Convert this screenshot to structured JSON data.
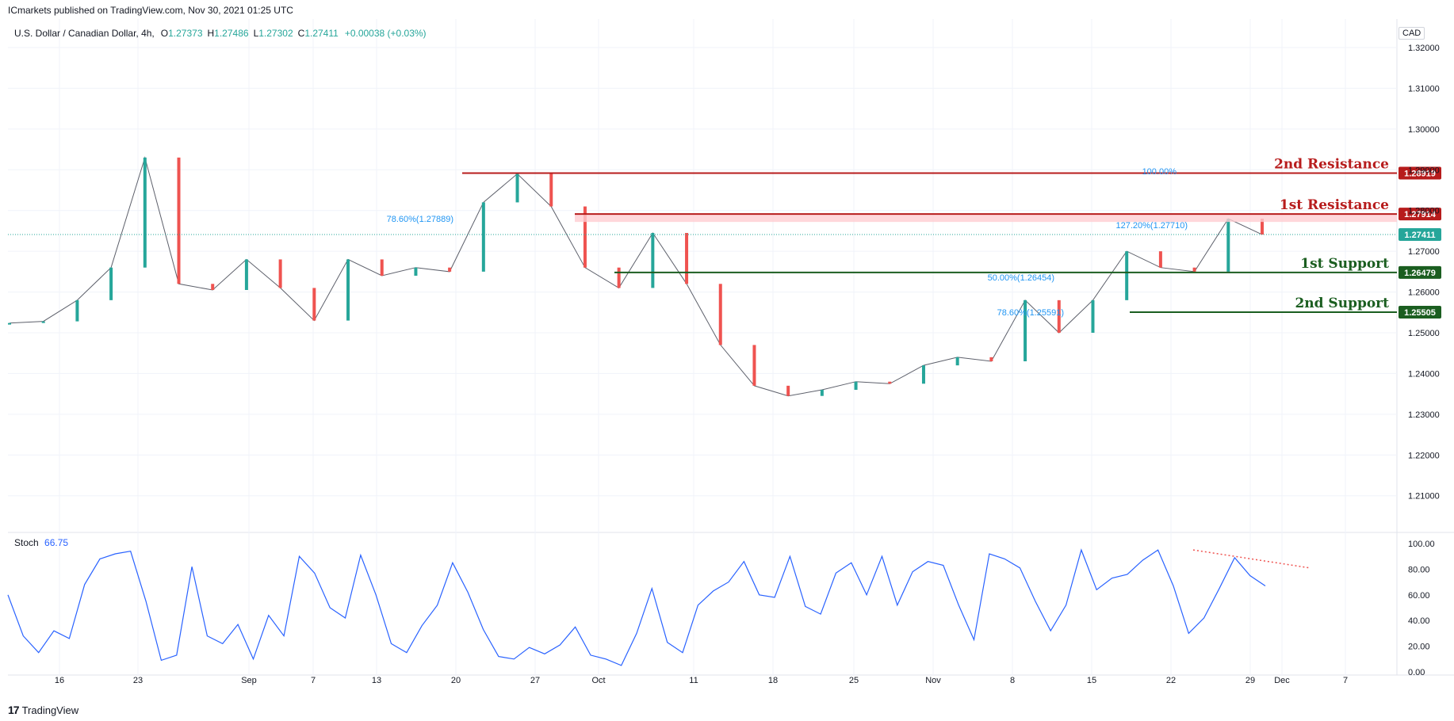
{
  "header": {
    "published": "ICmarkets published on TradingView.com, Nov 30, 2021 01:25 UTC",
    "symbol": "U.S. Dollar / Canadian Dollar, 4h,",
    "ohlc": [
      {
        "k": "O",
        "v": "1.27373"
      },
      {
        "k": "H",
        "v": "1.27486"
      },
      {
        "k": "L",
        "v": "1.27302"
      },
      {
        "k": "C",
        "v": "1.27411"
      }
    ],
    "change": "+0.00038 (+0.03%)",
    "currency": "CAD"
  },
  "stoch": {
    "label": "Stoch",
    "value": "66.75"
  },
  "footer": {
    "brand": "TradingView"
  },
  "colors": {
    "up": "#26a69a",
    "down": "#ef5350",
    "grid": "#f0f3fa",
    "resistance": "#b71c1c",
    "support": "#1b5e20",
    "stoch": "#2962ff",
    "text": "#131722"
  },
  "chart_data": {
    "type": "line",
    "title": "U.S. Dollar / Canadian Dollar, 4h",
    "price_ylim": [
      1.201,
      1.327
    ],
    "price_ticks": [
      "1.32000",
      "1.31000",
      "1.30000",
      "1.29000",
      "1.28000",
      "1.27000",
      "1.26000",
      "1.25000",
      "1.24000",
      "1.23000",
      "1.22000",
      "1.21000"
    ],
    "x_ticks": [
      "16",
      "23",
      "Sep",
      "7",
      "13",
      "20",
      "27",
      "Oct",
      "11",
      "18",
      "25",
      "Nov",
      "8",
      "15",
      "22",
      "29",
      "Dec",
      "7"
    ],
    "series": [
      {
        "x": [
          "Aug 10",
          "Aug 13",
          "Aug 16",
          "Aug 19",
          "Aug 20",
          "Aug 23",
          "Aug 25",
          "Aug 27",
          "Aug 31",
          "Sep 3",
          "Sep 6",
          "Sep 9",
          "Sep 13",
          "Sep 16",
          "Sep 20",
          "Sep 21",
          "Sep 24",
          "Sep 27",
          "Sep 29",
          "Oct 1",
          "Oct 6",
          "Oct 12",
          "Oct 18",
          "Oct 21",
          "Oct 25",
          "Oct 28",
          "Nov 1",
          "Nov 5",
          "Nov 9",
          "Nov 11",
          "Nov 15",
          "Nov 17",
          "Nov 19",
          "Nov 23",
          "Nov 25",
          "Nov 26",
          "Nov 29",
          "Nov 30"
        ],
        "values": [
          1.2524,
          1.2528,
          1.258,
          1.266,
          1.293,
          1.262,
          1.2605,
          1.268,
          1.261,
          1.253,
          1.268,
          1.264,
          1.266,
          1.265,
          1.282,
          1.289,
          1.281,
          1.266,
          1.261,
          1.2745,
          1.262,
          1.247,
          1.237,
          1.2345,
          1.236,
          1.238,
          1.2375,
          1.242,
          1.244,
          1.243,
          1.258,
          1.25,
          1.258,
          1.27,
          1.266,
          1.265,
          1.278,
          1.2741
        ]
      }
    ],
    "levels": [
      {
        "label": "2nd Resistance",
        "value": "1.28919",
        "kind": "resistance"
      },
      {
        "label": "1st Resistance",
        "value": "1.27914",
        "kind": "resistance"
      },
      {
        "label": "1st Support",
        "value": "1.26479",
        "kind": "support"
      },
      {
        "label": "2nd Support",
        "value": "1.25505",
        "kind": "support"
      }
    ],
    "last_price": "1.27411",
    "fib_labels": [
      "100.00%",
      "78.60%(1.27889)",
      "127.20%(1.27710)",
      "50.00%(1.26454)",
      "78.60%(1.25591)"
    ],
    "stochastic": {
      "ylim": [
        0,
        100
      ],
      "ticks": [
        "100.00",
        "80.00",
        "60.00",
        "40.00",
        "20.00",
        "0.00"
      ],
      "values": [
        60,
        28,
        15,
        32,
        26,
        68,
        88,
        92,
        94,
        55,
        9,
        13,
        82,
        28,
        22,
        37,
        10,
        44,
        28,
        90,
        77,
        50,
        42,
        91,
        60,
        22,
        15,
        36,
        52,
        85,
        62,
        33,
        12,
        10,
        19,
        14,
        21,
        35,
        13,
        10,
        5,
        30,
        65,
        23,
        15,
        52,
        63,
        70,
        86,
        60,
        58,
        90,
        51,
        45,
        77,
        85,
        60,
        90,
        52,
        78,
        86,
        83,
        52,
        25,
        92,
        88,
        81,
        55,
        32,
        52,
        95,
        64,
        73,
        76,
        87,
        95,
        67,
        30,
        42,
        65,
        89,
        75,
        67
      ]
    }
  }
}
